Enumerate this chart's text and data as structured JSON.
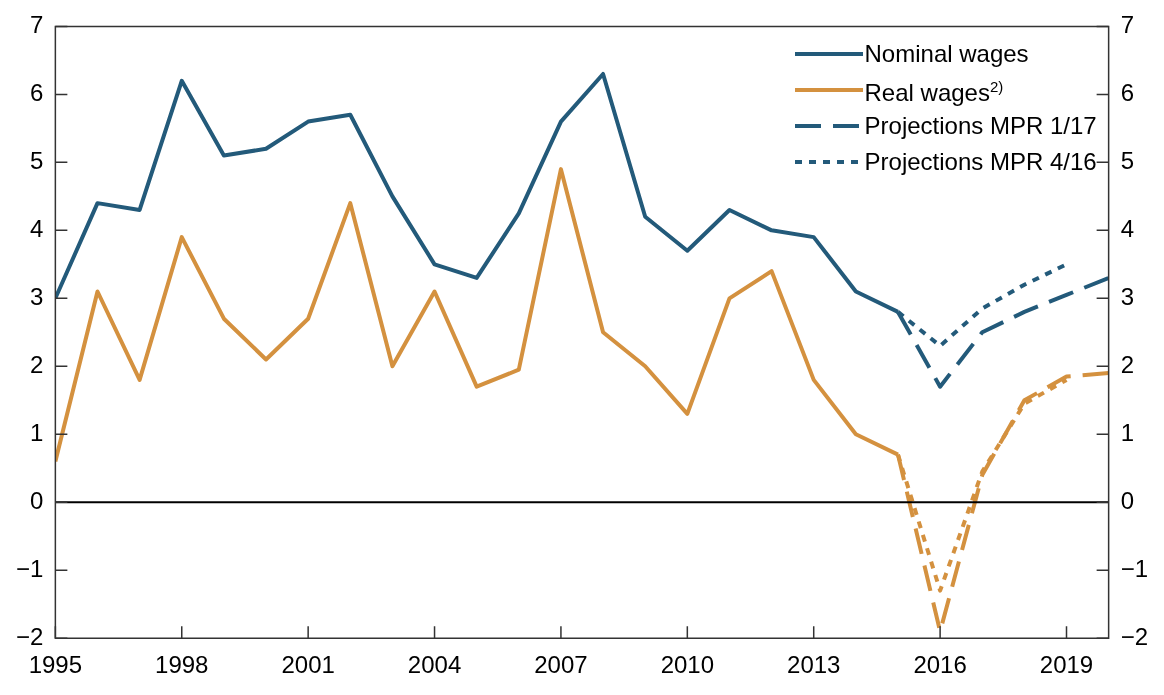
{
  "chart_data": {
    "type": "line",
    "x": [
      1995,
      1996,
      1997,
      1998,
      1999,
      2000,
      2001,
      2002,
      2003,
      2004,
      2005,
      2006,
      2007,
      2008,
      2009,
      2010,
      2011,
      2012,
      2013,
      2014,
      2015
    ],
    "series": [
      {
        "name": "Nominal wages",
        "color": "#235a7a",
        "line_style": "solid",
        "values": [
          3.0,
          4.4,
          4.3,
          6.2,
          5.1,
          5.2,
          5.6,
          5.7,
          4.5,
          3.5,
          3.3,
          4.25,
          5.6,
          6.3,
          4.2,
          3.7,
          4.3,
          4.0,
          3.9,
          3.1,
          2.8
        ]
      },
      {
        "name": "Real wages$^{2)}$",
        "color": "#d4913f",
        "line_style": "solid",
        "values": [
          0.6,
          3.1,
          1.8,
          3.9,
          2.7,
          2.1,
          2.7,
          4.4,
          2.0,
          3.1,
          1.7,
          1.95,
          4.9,
          2.5,
          2.0,
          1.3,
          3.0,
          3.4,
          1.8,
          1.0,
          0.7
        ]
      },
      {
        "name": "Projections MPR 1/17",
        "color": "#235a7a",
        "line_style": "dashed",
        "x": [
          2015,
          2016,
          2017,
          2018,
          2019,
          2020
        ],
        "values": [
          2.8,
          1.7,
          2.5,
          2.8,
          3.05,
          3.3
        ]
      },
      {
        "color": "#d4913f",
        "line_style": "dashed",
        "x": [
          2015,
          2016,
          2017,
          2018,
          2019,
          2020
        ],
        "values": [
          0.7,
          -1.9,
          0.4,
          1.5,
          1.85,
          1.9
        ]
      },
      {
        "name": "Projections MPR 4/16",
        "color": "#235a7a",
        "line_style": "dotted",
        "x": [
          2015,
          2016,
          2017,
          2018,
          2019
        ],
        "values": [
          2.8,
          2.3,
          2.85,
          3.2,
          3.5
        ]
      },
      {
        "color": "#d4913f",
        "line_style": "dotted",
        "x": [
          2015,
          2016,
          2017,
          2018,
          2019
        ],
        "values": [
          0.7,
          -1.3,
          0.45,
          1.45,
          1.8
        ]
      }
    ],
    "xlim": [
      1995,
      2020
    ],
    "xticks": [
      1995,
      1998,
      2001,
      2004,
      2007,
      2010,
      2013,
      2016,
      2019
    ],
    "ylim": [
      -2,
      7
    ],
    "yticks": [
      -2,
      -1,
      0,
      1,
      2,
      3,
      4,
      5,
      6,
      7
    ],
    "y2lim": [
      -2,
      7
    ],
    "y2ticks": [
      -2,
      -1,
      0,
      1,
      2,
      3,
      4,
      5,
      6,
      7
    ],
    "ref_lines": [
      {
        "axis": "y",
        "value": 0,
        "color": "#000000"
      }
    ],
    "grid": false,
    "legend": "top right",
    "marker": "none"
  }
}
